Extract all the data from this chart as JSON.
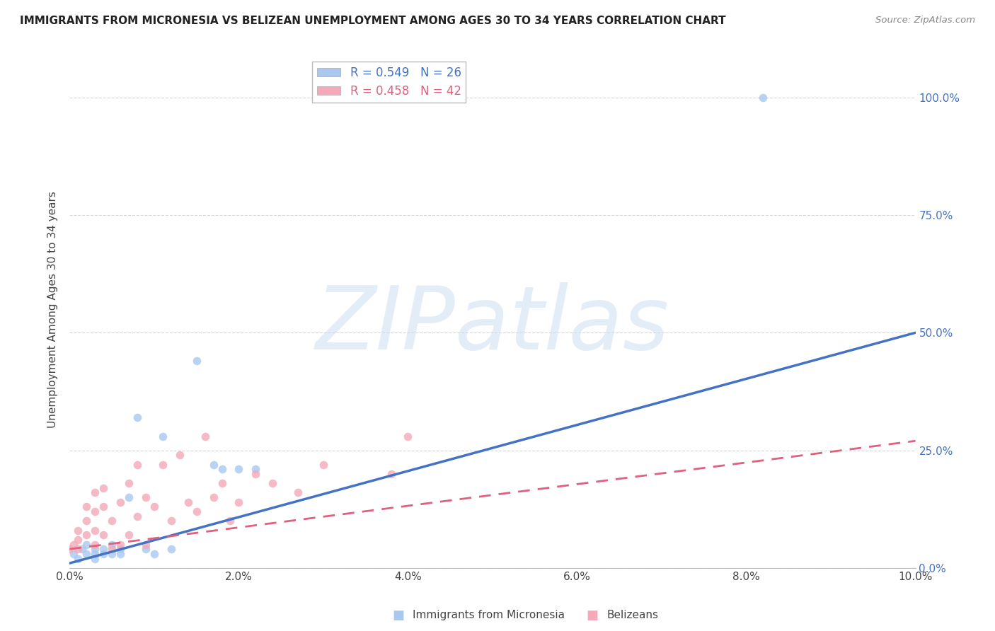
{
  "title": "IMMIGRANTS FROM MICRONESIA VS BELIZEAN UNEMPLOYMENT AMONG AGES 30 TO 34 YEARS CORRELATION CHART",
  "source": "Source: ZipAtlas.com",
  "ylabel": "Unemployment Among Ages 30 to 34 years",
  "xlim": [
    0.0,
    0.1
  ],
  "ylim": [
    0.0,
    1.1
  ],
  "yticks": [
    0.0,
    0.25,
    0.5,
    0.75,
    1.0
  ],
  "ytick_labels": [
    "0.0%",
    "25.0%",
    "50.0%",
    "75.0%",
    "100.0%"
  ],
  "xticks": [
    0.0,
    0.02,
    0.04,
    0.06,
    0.08,
    0.1
  ],
  "xtick_labels": [
    "0.0%",
    "2.0%",
    "4.0%",
    "6.0%",
    "8.0%",
    "10.0%"
  ],
  "legend_label_blue": "R = 0.549   N = 26",
  "legend_label_pink": "R = 0.458   N = 42",
  "blue_scatter_x": [
    0.0005,
    0.001,
    0.0015,
    0.002,
    0.002,
    0.003,
    0.003,
    0.003,
    0.004,
    0.004,
    0.005,
    0.005,
    0.006,
    0.006,
    0.007,
    0.008,
    0.009,
    0.01,
    0.011,
    0.012,
    0.015,
    0.017,
    0.018,
    0.02,
    0.022,
    0.082
  ],
  "blue_scatter_y": [
    0.03,
    0.02,
    0.04,
    0.03,
    0.05,
    0.03,
    0.04,
    0.02,
    0.04,
    0.03,
    0.03,
    0.05,
    0.04,
    0.03,
    0.15,
    0.32,
    0.04,
    0.03,
    0.28,
    0.04,
    0.44,
    0.22,
    0.21,
    0.21,
    0.21,
    1.0
  ],
  "pink_scatter_x": [
    0.0,
    0.0005,
    0.001,
    0.001,
    0.001,
    0.002,
    0.002,
    0.002,
    0.003,
    0.003,
    0.003,
    0.003,
    0.004,
    0.004,
    0.004,
    0.005,
    0.005,
    0.006,
    0.006,
    0.007,
    0.007,
    0.008,
    0.008,
    0.009,
    0.009,
    0.01,
    0.011,
    0.012,
    0.013,
    0.014,
    0.015,
    0.016,
    0.017,
    0.018,
    0.019,
    0.02,
    0.022,
    0.024,
    0.027,
    0.03,
    0.038,
    0.04
  ],
  "pink_scatter_y": [
    0.04,
    0.05,
    0.04,
    0.06,
    0.08,
    0.07,
    0.1,
    0.13,
    0.05,
    0.08,
    0.12,
    0.16,
    0.07,
    0.13,
    0.17,
    0.04,
    0.1,
    0.05,
    0.14,
    0.07,
    0.18,
    0.11,
    0.22,
    0.05,
    0.15,
    0.13,
    0.22,
    0.1,
    0.24,
    0.14,
    0.12,
    0.28,
    0.15,
    0.18,
    0.1,
    0.14,
    0.2,
    0.18,
    0.16,
    0.22,
    0.2,
    0.28
  ],
  "blue_line_x": [
    0.0,
    0.1
  ],
  "blue_line_y": [
    0.01,
    0.5
  ],
  "pink_line_x": [
    0.0,
    0.1
  ],
  "pink_line_y": [
    0.04,
    0.27
  ],
  "blue_scatter_color": "#a8c8f0",
  "pink_scatter_color": "#f4a8b8",
  "blue_line_color": "#4472c4",
  "pink_line_color": "#e06080",
  "watermark_color": "#c8ddf0",
  "watermark_alpha": 0.5,
  "background_color": "#ffffff",
  "grid_color": "#cccccc"
}
